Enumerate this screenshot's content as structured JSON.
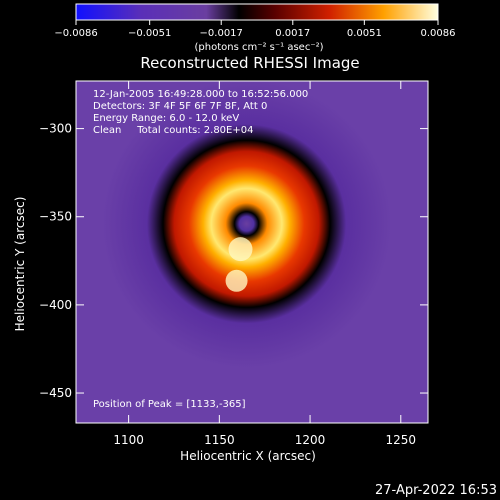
{
  "chart_data": {
    "type": "heatmap",
    "title": "Reconstructed RHESSI Image",
    "xlabel": "Heliocentric X (arcsec)",
    "ylabel": "Heliocentric Y (arcsec)",
    "xlim": [
      1071,
      1265
    ],
    "ylim": [
      -467,
      -273
    ],
    "xticks": [
      1100,
      1150,
      1200,
      1250
    ],
    "yticks": [
      -300,
      -350,
      -400,
      -450
    ],
    "xtick_labels": [
      "1100",
      "1150",
      "1200",
      "1250"
    ],
    "ytick_labels": [
      "−300",
      "−350",
      "−400",
      "−450"
    ],
    "colorbar": {
      "min": -0.0086,
      "max": 0.0086,
      "ticks": [
        -0.0086,
        -0.0051,
        -0.0017,
        0.0017,
        0.0051,
        0.0086
      ],
      "tick_labels": [
        "−0.0086",
        "−0.0051",
        "−0.0017",
        "0.0017",
        "0.0051",
        "0.0086"
      ],
      "units_label": "(photons cm⁻² s⁻¹ asec⁻²)"
    },
    "annotations": [
      "12-Jan-2005 16:49:28.000 to 16:52:56.000",
      "Detectors: 3F 4F 5F 6F 7F 8F, Att 0",
      "Energy Range: 6.0 - 12.0 keV",
      "Clean     Total counts: 2.80E+04"
    ],
    "peak_label": "Position of Peak = [1133,-365]",
    "peak": [
      1133,
      -365
    ],
    "source": {
      "center": [
        1165,
        -354
      ],
      "ring_radius": 35,
      "ring_width": 14,
      "core_radius": 8,
      "halo_radius": 77
    },
    "footer_date": "27-Apr-2022 16:53"
  }
}
